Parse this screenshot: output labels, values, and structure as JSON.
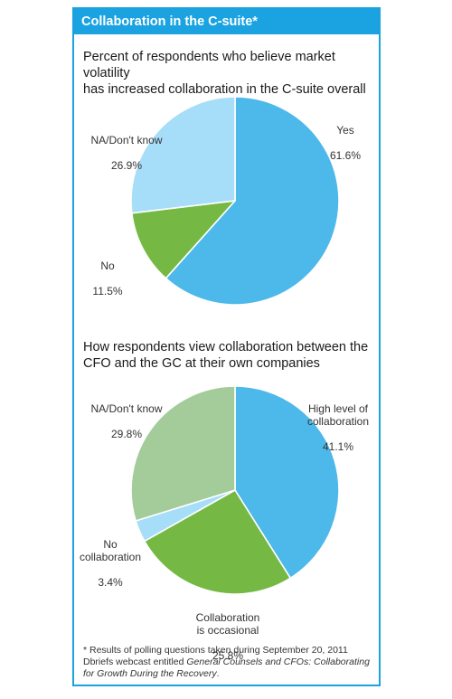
{
  "header": {
    "title": "Collaboration in the C-suite*"
  },
  "chart_data": [
    {
      "type": "pie",
      "title": "Percent of respondents who believe market volatility\nhas increased collaboration in the C-suite overall",
      "slices": [
        {
          "label": "Yes",
          "value": 61.6,
          "display": "61.6%",
          "color": "#4db8ea"
        },
        {
          "label": "No",
          "value": 11.5,
          "display": "11.5%",
          "color": "#75b944"
        },
        {
          "label": "NA/Don't know",
          "value": 26.9,
          "display": "26.9%",
          "color": "#a6ddf8"
        }
      ]
    },
    {
      "type": "pie",
      "title": "How respondents view collaboration between the\nCFO and the GC at their own companies",
      "slices": [
        {
          "label": "High level of\ncollaboration",
          "value": 41.1,
          "display": "41.1%",
          "color": "#4db8ea"
        },
        {
          "label": "Collaboration\nis occasional",
          "value": 25.8,
          "display": "25.8%",
          "color": "#75b944"
        },
        {
          "label": "No\ncollaboration",
          "value": 3.4,
          "display": "3.4%",
          "color": "#a6ddf8"
        },
        {
          "label": "NA/Don't know",
          "value": 29.8,
          "display": "29.8%",
          "color": "#a3cc9a"
        }
      ]
    }
  ],
  "footnote": {
    "prefix": "* Results of polling questions taken during September 20, 2011 Dbriefs webcast entitled ",
    "italic": "General Counsels and CFOs: Collaborating for Growth During the Recovery",
    "suffix": "."
  }
}
